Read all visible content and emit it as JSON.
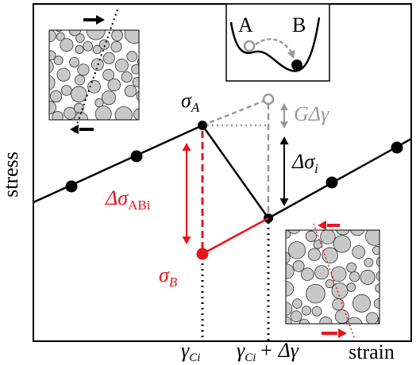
{
  "axes": {
    "x_label": "strain",
    "y_label": "stress"
  },
  "labels": {
    "sigma_a": {
      "symbol": "σ",
      "subscript": "A"
    },
    "sigma_b": {
      "symbol": "σ",
      "subscript": "B"
    },
    "delta_sigma_abi": {
      "symbol": "Δσ",
      "subscript": "ABi"
    },
    "delta_sigma_i": {
      "symbol": "Δσ",
      "subscript": "i"
    },
    "g_delta_gamma": "GΔγ"
  },
  "x_marks": [
    {
      "symbol": "γ",
      "subscript": "Ci"
    },
    {
      "symbol": "γ",
      "subscript": "Ci",
      "suffix": "+ Δγ"
    }
  ],
  "inset": {
    "state_a": "A",
    "state_b": "B"
  }
}
